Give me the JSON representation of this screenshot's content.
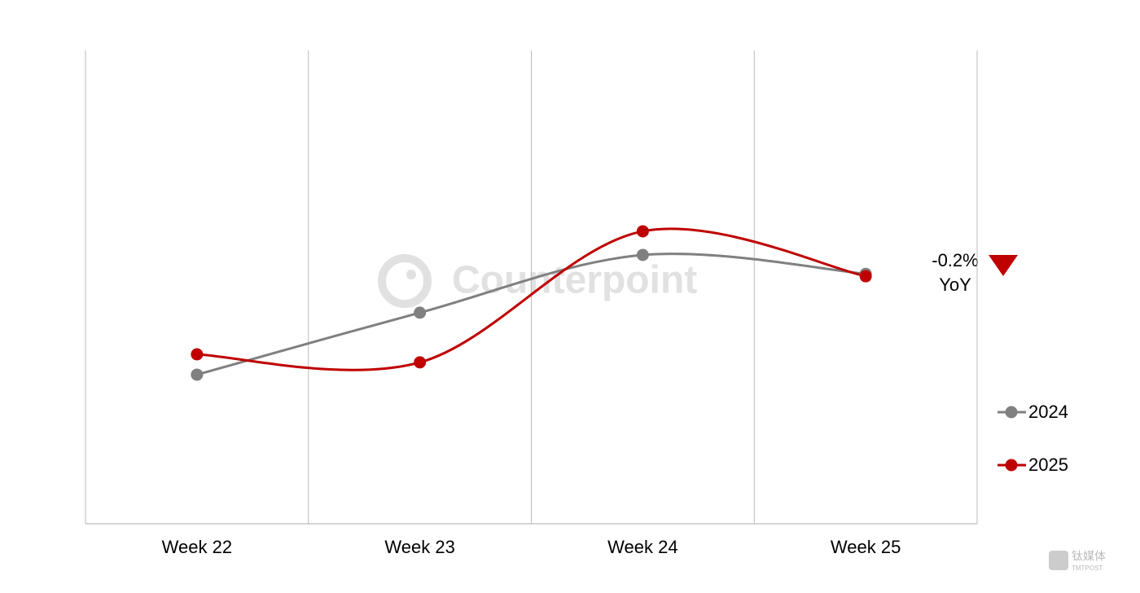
{
  "chart_data": {
    "type": "line",
    "categories": [
      "Week 22",
      "Week 23",
      "Week 24",
      "Week 25"
    ],
    "series": [
      {
        "name": "2024",
        "color": "#808080",
        "values": [
          31.5,
          44.6,
          56.8,
          52.8
        ]
      },
      {
        "name": "2025",
        "color": "#c00000",
        "values": [
          35.8,
          34.1,
          61.8,
          52.3
        ]
      }
    ],
    "ylim": [
      0,
      100
    ],
    "annotation": {
      "value_text": "-0.2%",
      "unit_text": "YoY"
    },
    "watermark": "Counterpoint",
    "source_logo": {
      "name": "钛媒体",
      "sub": "TMTPOST"
    },
    "legend": "right",
    "smooth": true
  }
}
